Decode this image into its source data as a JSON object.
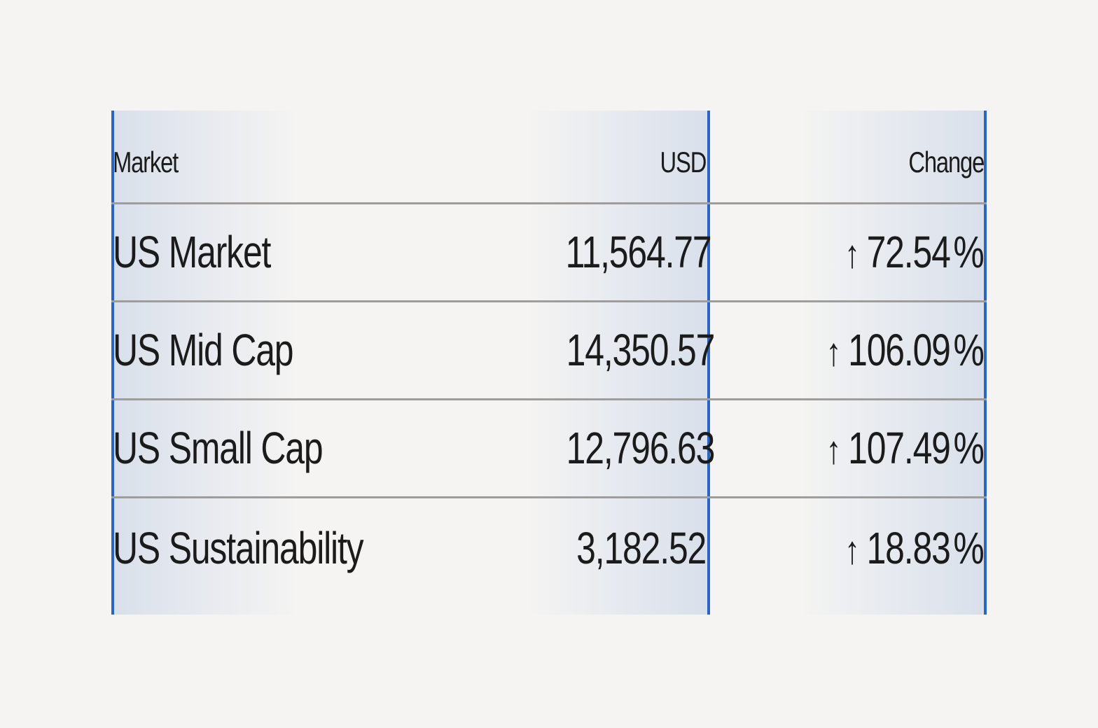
{
  "table": {
    "columns": [
      "Market",
      "USD",
      "Change"
    ],
    "rows": [
      {
        "market": "US Market",
        "usd": "11,564.77",
        "change_arrow": "↑",
        "change_value": "72.54",
        "change_unit": "%"
      },
      {
        "market": "US Mid Cap",
        "usd": "14,350.57",
        "change_arrow": "↑",
        "change_value": "106.09",
        "change_unit": "%"
      },
      {
        "market": "US Small Cap",
        "usd": "12,796.63",
        "change_arrow": "↑",
        "change_value": "107.49",
        "change_unit": "%"
      },
      {
        "market": "US Sustainability",
        "usd": "3,182.52",
        "change_arrow": "↑",
        "change_value": "18.83",
        "change_unit": "%"
      }
    ]
  },
  "icons": {
    "change_direction": "arrow-up-icon"
  },
  "colors": {
    "background": "#f5f4f2",
    "accent_border": "#2a66c0",
    "column_highlight": "#d9e0eb",
    "row_divider": "#9e9d9b",
    "text": "#1b1b1b"
  }
}
